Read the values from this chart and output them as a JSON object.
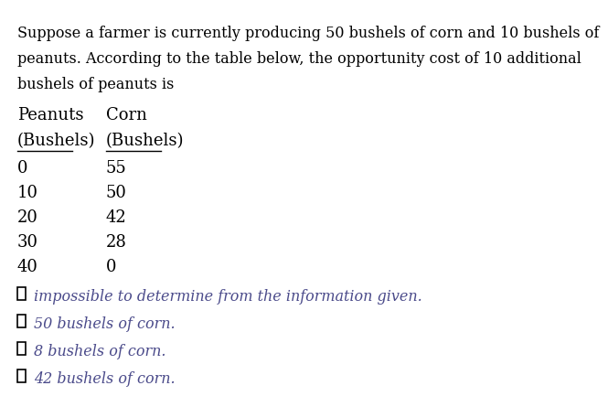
{
  "question_text": "Suppose a farmer is currently producing 50 bushels of corn and 10 bushels of\npeanuts. According to the table below, the opportunity cost of 10 additional\nbushels of peanuts is",
  "col1_header": "Peanuts",
  "col2_header": "Corn",
  "col1_subheader": "(Bushels)",
  "col2_subheader": "(Bushels)",
  "table_data": [
    [
      0,
      55
    ],
    [
      10,
      50
    ],
    [
      20,
      42
    ],
    [
      30,
      28
    ],
    [
      40,
      0
    ]
  ],
  "choices": [
    "impossible to determine from the information given.",
    "50 bushels of corn.",
    "8 bushels of corn.",
    "42 bushels of corn."
  ],
  "bg_color": "#ffffff",
  "text_color": "#000000",
  "choice_color": "#4a4a8a",
  "question_fontsize": 11.5,
  "table_fontsize": 13,
  "choice_fontsize": 11.5,
  "header_fontsize": 13
}
